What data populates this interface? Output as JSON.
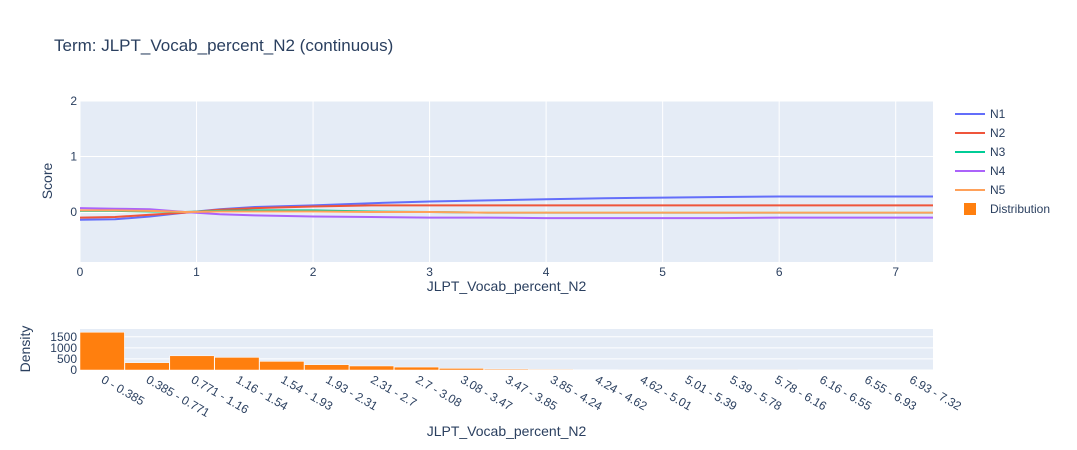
{
  "title": "Term: JLPT_Vocab_percent_N2 (continuous)",
  "colors": {
    "plot_bg": "#e5ecf6",
    "grid": "#ffffff",
    "text": "#2a3f5f",
    "N1": "#636efa",
    "N2": "#ef553b",
    "N3": "#00cc96",
    "N4": "#ab63fa",
    "N5": "#ffa15a",
    "Distribution": "#ff7f0e"
  },
  "chart_data": [
    {
      "type": "line",
      "xlabel": "JLPT_Vocab_percent_N2",
      "ylabel": "Score",
      "xlim": [
        0,
        7.32
      ],
      "ylim": [
        -0.9,
        2.0
      ],
      "xticks": [
        0,
        1,
        2,
        3,
        4,
        5,
        6,
        7
      ],
      "yticks": [
        0,
        1,
        2
      ],
      "grid": true,
      "legend_position": "right",
      "series": [
        {
          "name": "N1",
          "x": [
            0,
            0.3,
            0.6,
            0.9,
            1.2,
            1.5,
            2.0,
            2.5,
            3.0,
            3.5,
            4.0,
            4.5,
            5.0,
            5.5,
            6.0,
            7.32
          ],
          "y": [
            -0.14,
            -0.13,
            -0.08,
            -0.01,
            0.05,
            0.09,
            0.12,
            0.16,
            0.19,
            0.21,
            0.23,
            0.25,
            0.26,
            0.27,
            0.28,
            0.28
          ]
        },
        {
          "name": "N2",
          "x": [
            0,
            0.3,
            0.6,
            0.9,
            1.2,
            1.5,
            2.0,
            2.5,
            3.0,
            3.5,
            4.0,
            4.5,
            5.0,
            5.5,
            6.0,
            7.32
          ],
          "y": [
            -0.1,
            -0.09,
            -0.05,
            -0.01,
            0.04,
            0.07,
            0.1,
            0.12,
            0.12,
            0.12,
            0.12,
            0.12,
            0.12,
            0.12,
            0.12,
            0.12
          ]
        },
        {
          "name": "N3",
          "x": [
            0,
            0.3,
            0.6,
            0.9,
            1.2,
            1.5,
            2.0,
            2.5,
            3.0,
            3.5,
            4.0,
            4.5,
            5.0,
            5.5,
            6.0,
            7.32
          ],
          "y": [
            0.02,
            0.02,
            0.01,
            0.0,
            0.02,
            0.03,
            0.03,
            0.01,
            0.0,
            -0.01,
            -0.01,
            -0.01,
            -0.01,
            -0.01,
            -0.01,
            -0.01
          ]
        },
        {
          "name": "N4",
          "x": [
            0,
            0.3,
            0.6,
            0.9,
            1.2,
            1.5,
            2.0,
            2.5,
            3.0,
            3.5,
            4.0,
            4.5,
            5.0,
            5.5,
            6.0,
            7.32
          ],
          "y": [
            0.07,
            0.06,
            0.05,
            0.0,
            -0.04,
            -0.06,
            -0.08,
            -0.09,
            -0.1,
            -0.1,
            -0.11,
            -0.11,
            -0.11,
            -0.11,
            -0.1,
            -0.1
          ]
        },
        {
          "name": "N5",
          "x": [
            0,
            0.3,
            0.6,
            0.9,
            1.2,
            1.5,
            2.0,
            2.5,
            3.0,
            3.5,
            4.0,
            4.5,
            5.0,
            5.5,
            6.0,
            7.32
          ],
          "y": [
            0.03,
            0.03,
            0.02,
            0.0,
            0.01,
            0.01,
            0.01,
            0.0,
            0.0,
            -0.01,
            -0.01,
            -0.01,
            -0.01,
            -0.01,
            -0.01,
            -0.01
          ]
        }
      ]
    },
    {
      "type": "bar",
      "name": "Distribution",
      "xlabel": "JLPT_Vocab_percent_N2",
      "ylabel": "Density",
      "ylim": [
        0,
        1850
      ],
      "yticks": [
        0,
        500,
        1000,
        1500
      ],
      "categories": [
        "0 - 0.385",
        "0.385 - 0.771",
        "0.771 - 1.16",
        "1.16 - 1.54",
        "1.54 - 1.93",
        "1.93 - 2.31",
        "2.31 - 2.7",
        "2.7 - 3.08",
        "3.08 - 3.47",
        "3.47 - 3.85",
        "3.85 - 4.24",
        "4.24 - 4.62",
        "4.62 - 5.01",
        "5.01 - 5.39",
        "5.39 - 5.78",
        "5.78 - 6.16",
        "6.16 - 6.55",
        "6.55 - 6.93",
        "6.93 - 7.32"
      ],
      "values": [
        1700,
        330,
        640,
        570,
        390,
        240,
        180,
        130,
        70,
        40,
        25,
        15,
        10,
        6,
        4,
        3,
        2,
        2,
        1
      ]
    }
  ]
}
